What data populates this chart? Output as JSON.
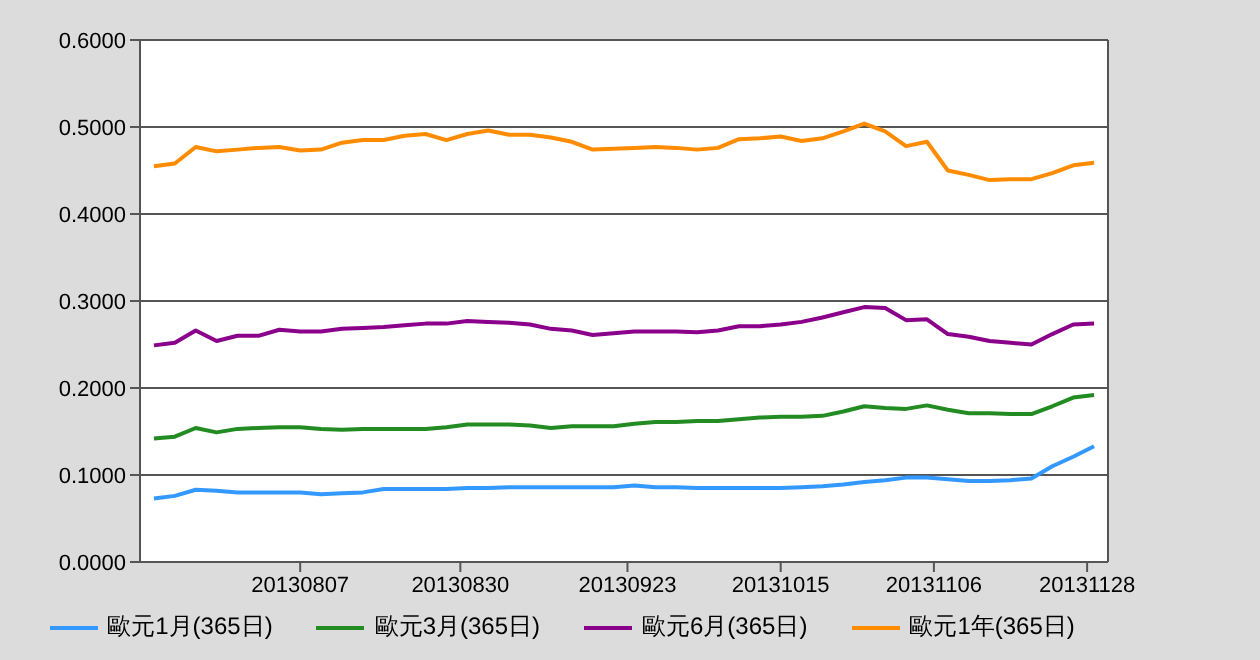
{
  "chart_data": {
    "type": "line",
    "x": [
      "2013-07-17",
      "2013-07-20",
      "2013-07-23",
      "2013-07-26",
      "2013-07-29",
      "2013-08-01",
      "2013-08-04",
      "2013-08-07",
      "2013-08-10",
      "2013-08-13",
      "2013-08-16",
      "2013-08-19",
      "2013-08-22",
      "2013-08-25",
      "2013-08-28",
      "2013-08-31",
      "2013-09-03",
      "2013-09-06",
      "2013-09-09",
      "2013-09-12",
      "2013-09-15",
      "2013-09-18",
      "2013-09-21",
      "2013-09-24",
      "2013-09-27",
      "2013-09-30",
      "2013-10-03",
      "2013-10-06",
      "2013-10-09",
      "2013-10-12",
      "2013-10-15",
      "2013-10-18",
      "2013-10-21",
      "2013-10-24",
      "2013-10-27",
      "2013-10-30",
      "2013-11-02",
      "2013-11-05",
      "2013-11-08",
      "2013-11-11",
      "2013-11-14",
      "2013-11-17",
      "2013-11-20",
      "2013-11-23",
      "2013-11-26",
      "2013-11-29"
    ],
    "series": [
      {
        "name": "歐元1月(365日)",
        "color": "#3399ff",
        "values": [
          0.073,
          0.076,
          0.083,
          0.082,
          0.08,
          0.08,
          0.08,
          0.08,
          0.078,
          0.079,
          0.08,
          0.084,
          0.084,
          0.084,
          0.084,
          0.085,
          0.085,
          0.086,
          0.086,
          0.086,
          0.086,
          0.086,
          0.086,
          0.088,
          0.086,
          0.086,
          0.085,
          0.085,
          0.085,
          0.085,
          0.085,
          0.086,
          0.087,
          0.089,
          0.092,
          0.094,
          0.097,
          0.097,
          0.095,
          0.093,
          0.093,
          0.094,
          0.096,
          0.11,
          0.121,
          0.133
        ]
      },
      {
        "name": "歐元3月(365日)",
        "color": "#228b22",
        "values": [
          0.142,
          0.144,
          0.154,
          0.149,
          0.153,
          0.154,
          0.155,
          0.155,
          0.153,
          0.152,
          0.153,
          0.153,
          0.153,
          0.153,
          0.155,
          0.158,
          0.158,
          0.158,
          0.157,
          0.154,
          0.156,
          0.156,
          0.156,
          0.159,
          0.161,
          0.161,
          0.162,
          0.162,
          0.164,
          0.166,
          0.167,
          0.167,
          0.168,
          0.173,
          0.179,
          0.177,
          0.176,
          0.18,
          0.175,
          0.171,
          0.171,
          0.17,
          0.17,
          0.179,
          0.189,
          0.192
        ]
      },
      {
        "name": "歐元6月(365日)",
        "color": "#8b008b",
        "values": [
          0.249,
          0.252,
          0.266,
          0.254,
          0.26,
          0.26,
          0.267,
          0.265,
          0.265,
          0.268,
          0.269,
          0.27,
          0.272,
          0.274,
          0.274,
          0.277,
          0.276,
          0.275,
          0.273,
          0.268,
          0.266,
          0.261,
          0.263,
          0.265,
          0.265,
          0.265,
          0.264,
          0.266,
          0.271,
          0.271,
          0.273,
          0.276,
          0.281,
          0.287,
          0.293,
          0.292,
          0.278,
          0.279,
          0.262,
          0.259,
          0.254,
          0.252,
          0.25,
          0.262,
          0.273,
          0.274
        ]
      },
      {
        "name": "歐元1年(365日)",
        "color": "#ff8c00",
        "values": [
          0.455,
          0.458,
          0.477,
          0.472,
          0.474,
          0.476,
          0.477,
          0.473,
          0.474,
          0.482,
          0.485,
          0.485,
          0.49,
          0.492,
          0.485,
          0.492,
          0.496,
          0.491,
          0.491,
          0.488,
          0.483,
          0.474,
          0.475,
          0.476,
          0.477,
          0.476,
          0.474,
          0.476,
          0.486,
          0.487,
          0.489,
          0.484,
          0.487,
          0.495,
          0.504,
          0.495,
          0.478,
          0.483,
          0.45,
          0.445,
          0.439,
          0.44,
          0.44,
          0.447,
          0.456,
          0.459
        ]
      }
    ],
    "xlim": [
      "2013-07-15",
      "2013-12-01"
    ],
    "xticks": [
      {
        "value": "2013-08-07",
        "label": "20130807"
      },
      {
        "value": "2013-08-30",
        "label": "20130830"
      },
      {
        "value": "2013-09-23",
        "label": "20130923"
      },
      {
        "value": "2013-10-15",
        "label": "20131015"
      },
      {
        "value": "2013-11-06",
        "label": "20131106"
      },
      {
        "value": "2013-11-28",
        "label": "20131128"
      }
    ],
    "ylim": [
      0,
      0.6
    ],
    "yticks": [
      {
        "value": 0,
        "label": "0.0000"
      },
      {
        "value": 0.1,
        "label": "0.1000"
      },
      {
        "value": 0.2,
        "label": "0.2000"
      },
      {
        "value": 0.3,
        "label": "0.3000"
      },
      {
        "value": 0.4,
        "label": "0.4000"
      },
      {
        "value": 0.5,
        "label": "0.5000"
      },
      {
        "value": 0.6,
        "label": "0.6000"
      }
    ],
    "grid": "y",
    "legend": "bottom",
    "marker": "none",
    "line_style": "solid"
  }
}
